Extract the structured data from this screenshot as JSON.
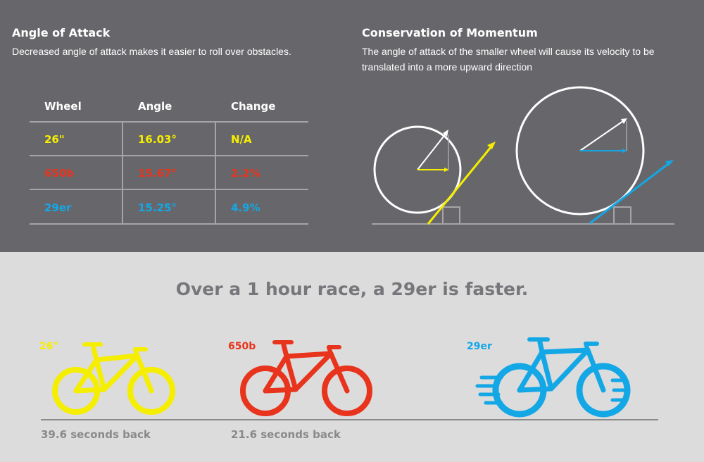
{
  "angle_of_attack": {
    "title": "Angle of Attack",
    "subtitle": "Decreased angle of attack makes it easier to roll over obstacles."
  },
  "momentum": {
    "title": "Conservation of Momentum",
    "description": "The angle of attack of the smaller wheel will cause its velocity to be translated into a more upward direction"
  },
  "table": {
    "headers": [
      "Wheel",
      "Angle",
      "Change"
    ],
    "rows": [
      {
        "wheel": "26\"",
        "angle": "16.03°",
        "change": "N/A",
        "color": "#f5ee00"
      },
      {
        "wheel": "650b",
        "angle": "15.67°",
        "change": "2.2%",
        "color": "#e8341c"
      },
      {
        "wheel": "29er",
        "angle": "15.25°",
        "change": "4.9%",
        "color": "#13a7e6"
      }
    ]
  },
  "race": {
    "headline": "Over a 1 hour race, a 29er is faster.",
    "bikes": [
      {
        "label": "26\"",
        "result": "39.6 seconds back",
        "color": "#f5ee00"
      },
      {
        "label": "650b",
        "result": "21.6 seconds back",
        "color": "#e8341c"
      },
      {
        "label": "29er",
        "result": "",
        "color": "#13a7e6"
      }
    ]
  },
  "colors": {
    "panel_dark": "#67676b",
    "panel_light": "#dcdcdc",
    "yellow": "#f5ee00",
    "red": "#e8341c",
    "blue": "#13a7e6"
  },
  "icons": [
    "bicycle-26-icon",
    "bicycle-650b-icon",
    "bicycle-29er-icon",
    "speed-lines-icon",
    "wheel-diagram-small",
    "wheel-diagram-large"
  ]
}
